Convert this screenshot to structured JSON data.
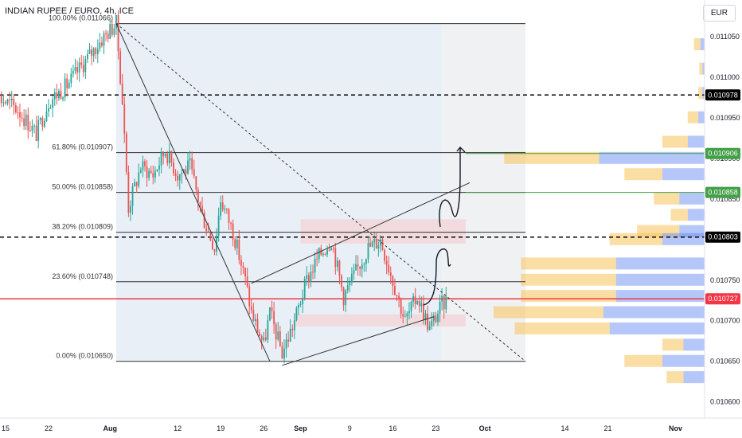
{
  "chart_title": "INDIAN RUPEE / EURO, 4h, ICE",
  "currency_button": "EUR",
  "colors": {
    "up": "#26a69a",
    "down": "#ef5350",
    "bg": "#ffffff",
    "current_price": "#f23645",
    "fib_green": "#43a047",
    "level_black": "#000000",
    "vp_yellow": "#f7c35a",
    "vp_blue": "#5b82f0",
    "drawing": "#131722"
  },
  "chart_data": {
    "type": "candlestick",
    "title": "INDIAN RUPEE / EURO, 4h, ICE",
    "timeframe": "4h",
    "exchange": "ICE",
    "currency": "EUR",
    "ylim": [
      0.010585,
      0.011095
    ],
    "y_ticks": [
      0.0106,
      0.01065,
      0.0107,
      0.01075,
      0.0108,
      0.01085,
      0.0109,
      0.01095,
      0.011,
      0.01105
    ],
    "y_tick_labels": [
      "0.010600",
      "0.010650",
      "0.010700",
      "0.010750",
      "0.010800",
      "0.010850",
      "0.010900",
      "0.010950",
      "0.011000",
      "0.011050"
    ],
    "x_ticks": [
      {
        "label": "15",
        "date": "2024-07-15"
      },
      {
        "label": "22",
        "date": "2024-07-22"
      },
      {
        "label": "Aug",
        "date": "2024-08-01",
        "bold": true
      },
      {
        "label": "12",
        "date": "2024-08-12"
      },
      {
        "label": "19",
        "date": "2024-08-19"
      },
      {
        "label": "26",
        "date": "2024-08-26"
      },
      {
        "label": "Sep",
        "date": "2024-09-01",
        "bold": true
      },
      {
        "label": "9",
        "date": "2024-09-09"
      },
      {
        "label": "16",
        "date": "2024-09-16"
      },
      {
        "label": "23",
        "date": "2024-09-23"
      },
      {
        "label": "Oct",
        "date": "2024-10-01",
        "bold": true
      },
      {
        "label": "14",
        "date": "2024-10-14"
      },
      {
        "label": "21",
        "date": "2024-10-21"
      },
      {
        "label": "Nov",
        "date": "2024-11-01",
        "bold": true
      }
    ],
    "price_path": [
      {
        "date": "2024-07-10",
        "price": 0.01097
      },
      {
        "date": "2024-07-13",
        "price": 0.01098
      },
      {
        "date": "2024-07-17",
        "price": 0.01096
      },
      {
        "date": "2024-07-20",
        "price": 0.01093
      },
      {
        "date": "2024-07-22",
        "price": 0.01097
      },
      {
        "date": "2024-07-25",
        "price": 0.01099
      },
      {
        "date": "2024-07-28",
        "price": 0.01102
      },
      {
        "date": "2024-07-31",
        "price": 0.01105
      },
      {
        "date": "2024-08-02",
        "price": 0.011066
      },
      {
        "date": "2024-08-03",
        "price": 0.01097
      },
      {
        "date": "2024-08-04",
        "price": 0.01084
      },
      {
        "date": "2024-08-06",
        "price": 0.01089
      },
      {
        "date": "2024-08-08",
        "price": 0.01088
      },
      {
        "date": "2024-08-10",
        "price": 0.01091
      },
      {
        "date": "2024-08-12",
        "price": 0.01088
      },
      {
        "date": "2024-08-14",
        "price": 0.01089
      },
      {
        "date": "2024-08-16",
        "price": 0.01083
      },
      {
        "date": "2024-08-18",
        "price": 0.01079
      },
      {
        "date": "2024-08-19",
        "price": 0.01085
      },
      {
        "date": "2024-08-21",
        "price": 0.01081
      },
      {
        "date": "2024-08-23",
        "price": 0.01075
      },
      {
        "date": "2024-08-24",
        "price": 0.01071
      },
      {
        "date": "2024-08-26",
        "price": 0.01067
      },
      {
        "date": "2024-08-27",
        "price": 0.01071
      },
      {
        "date": "2024-08-29",
        "price": 0.01066
      },
      {
        "date": "2024-08-31",
        "price": 0.0107
      },
      {
        "date": "2024-09-02",
        "price": 0.01075
      },
      {
        "date": "2024-09-04",
        "price": 0.01078
      },
      {
        "date": "2024-09-06",
        "price": 0.0108
      },
      {
        "date": "2024-09-08",
        "price": 0.01073
      },
      {
        "date": "2024-09-10",
        "price": 0.01076
      },
      {
        "date": "2024-09-12",
        "price": 0.01079
      },
      {
        "date": "2024-09-14",
        "price": 0.0108
      },
      {
        "date": "2024-09-16",
        "price": 0.01075
      },
      {
        "date": "2024-09-18",
        "price": 0.0107
      },
      {
        "date": "2024-09-20",
        "price": 0.01073
      },
      {
        "date": "2024-09-22",
        "price": 0.01069
      },
      {
        "date": "2024-09-24",
        "price": 0.01072
      },
      {
        "date": "2024-09-25",
        "price": 0.010727
      }
    ],
    "fib_levels": [
      {
        "label": "100.00% (0.011066)",
        "price": 0.011066
      },
      {
        "label": "61.80% (0.010907)",
        "price": 0.010907
      },
      {
        "label": "50.00% (0.010858)",
        "price": 0.010858
      },
      {
        "label": "38.20% (0.010809)",
        "price": 0.010809
      },
      {
        "label": "23.60% (0.010748)",
        "price": 0.010748
      },
      {
        "label": "0.00% (0.010650)",
        "price": 0.01065
      }
    ],
    "price_labels": [
      {
        "text": "0.010978",
        "price": 0.010978,
        "style": "black"
      },
      {
        "text": "0.010906",
        "price": 0.010906,
        "style": "green"
      },
      {
        "text": "0.010858",
        "price": 0.010858,
        "style": "green"
      },
      {
        "text": "0.010803",
        "price": 0.010803,
        "style": "black"
      },
      {
        "text": "0.010727",
        "price": 0.010727,
        "style": "red"
      }
    ],
    "dashed_levels": [
      0.010978,
      0.010803
    ],
    "current_price": 0.010727,
    "volume_profile_rows": [
      {
        "price": 0.01104,
        "yellow": 0.03,
        "blue": 0.02
      },
      {
        "price": 0.01101,
        "yellow": 0.015,
        "blue": 0.01
      },
      {
        "price": 0.01098,
        "yellow": 0.02,
        "blue": 0.01
      },
      {
        "price": 0.01095,
        "yellow": 0.05,
        "blue": 0.03
      },
      {
        "price": 0.01092,
        "yellow": 0.12,
        "blue": 0.08
      },
      {
        "price": 0.0109,
        "yellow": 0.45,
        "blue": 0.5
      },
      {
        "price": 0.01088,
        "yellow": 0.18,
        "blue": 0.2
      },
      {
        "price": 0.01085,
        "yellow": 0.12,
        "blue": 0.12
      },
      {
        "price": 0.01083,
        "yellow": 0.08,
        "blue": 0.08
      },
      {
        "price": 0.01081,
        "yellow": 0.2,
        "blue": 0.12
      },
      {
        "price": 0.0108,
        "yellow": 0.25,
        "blue": 0.2
      },
      {
        "price": 0.01077,
        "yellow": 0.45,
        "blue": 0.42
      },
      {
        "price": 0.01075,
        "yellow": 0.45,
        "blue": 0.42
      },
      {
        "price": 0.01073,
        "yellow": 0.45,
        "blue": 0.42
      },
      {
        "price": 0.01071,
        "yellow": 0.52,
        "blue": 0.48
      },
      {
        "price": 0.01069,
        "yellow": 0.45,
        "blue": 0.45
      },
      {
        "price": 0.01067,
        "yellow": 0.1,
        "blue": 0.1
      },
      {
        "price": 0.01065,
        "yellow": 0.18,
        "blue": 0.2
      },
      {
        "price": 0.01063,
        "yellow": 0.08,
        "blue": 0.1
      }
    ]
  }
}
